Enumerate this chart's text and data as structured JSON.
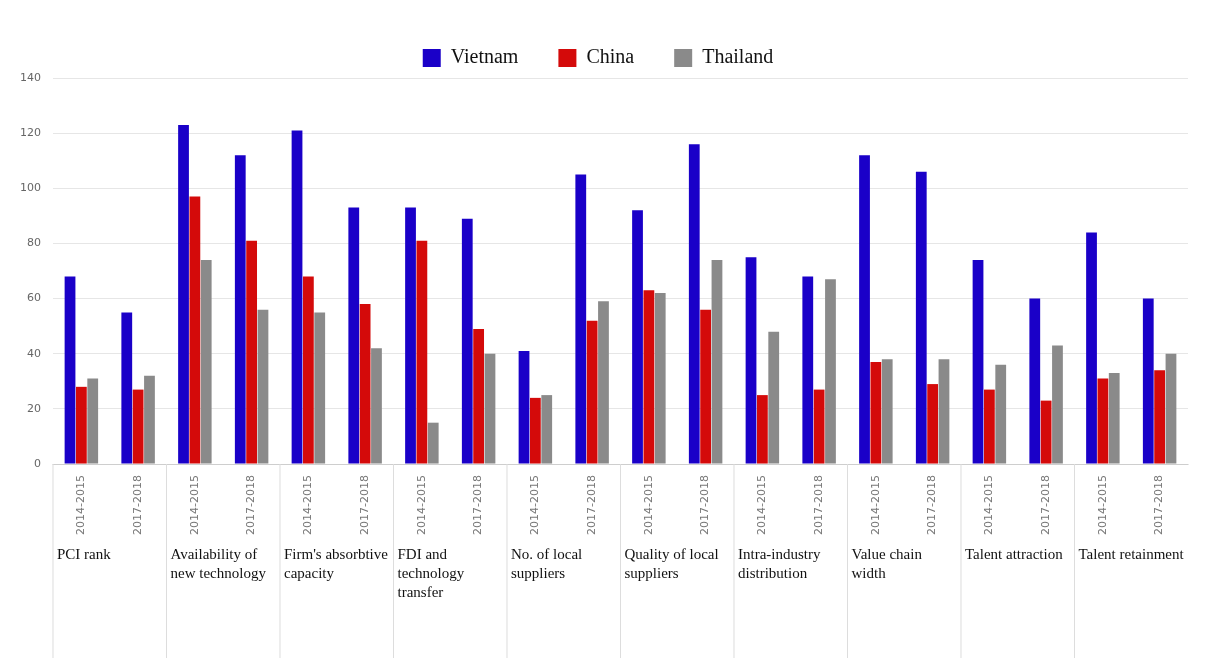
{
  "chart_data": {
    "type": "bar",
    "categories": [
      "2014-2015",
      "2017-2018",
      "2014-2015",
      "2017-2018",
      "2014-2015",
      "2017-2018",
      "2014-2015",
      "2017-2018",
      "2014-2015",
      "2017-2018",
      "2014-2015",
      "2017-2018",
      "2014-2015",
      "2017-2018",
      "2014-2015",
      "2017-2018",
      "2014-2015",
      "2017-2018",
      "2014-2015",
      "2017-2018"
    ],
    "series": [
      {
        "name": "Vietnam",
        "color": "#1a00c8",
        "values": [
          68,
          55,
          123,
          112,
          121,
          93,
          93,
          89,
          41,
          105,
          92,
          116,
          75,
          68,
          112,
          106,
          74,
          60,
          84,
          60
        ]
      },
      {
        "name": "China",
        "color": "#d40a0a",
        "values": [
          28,
          27,
          97,
          81,
          68,
          58,
          81,
          49,
          24,
          52,
          63,
          56,
          25,
          27,
          37,
          29,
          27,
          23,
          31,
          34
        ]
      },
      {
        "name": "Thailand",
        "color": "#8a8a8a",
        "values": [
          31,
          32,
          74,
          56,
          55,
          42,
          15,
          40,
          25,
          59,
          62,
          74,
          48,
          67,
          38,
          38,
          36,
          43,
          33,
          40
        ]
      }
    ],
    "annotations": [
      "PCI rank",
      "Availability of new technology",
      "Firm's absorbtive capacity",
      "FDI and technology transfer",
      "No. of local suppliers",
      "Quality of local suppliers",
      "Intra-industry distribution",
      "Value chain width",
      "Talent attraction",
      "Talent retainment"
    ],
    "ylim": [
      0,
      140
    ],
    "yticks": [
      0,
      20,
      40,
      60,
      80,
      100,
      120,
      140
    ],
    "grid": "y",
    "legend": "top"
  }
}
